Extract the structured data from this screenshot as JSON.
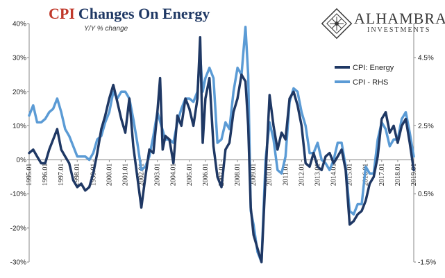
{
  "chart_data": {
    "type": "line",
    "title_part1": "CPI",
    "title_part2": "Changes On Energy",
    "subtitle": "Y/Y % change",
    "x_labels": [
      "1995.01",
      "1996.01",
      "1997.01",
      "1998.01",
      "1999.01",
      "2000.01",
      "2001.01",
      "2002.01",
      "2003.01",
      "2004.01",
      "2005.01",
      "2006.01",
      "2007.01",
      "2008.01",
      "2009.01",
      "2010.01",
      "2011.01",
      "2012.01",
      "2013.01",
      "2014.01",
      "2015.01",
      "2016.01",
      "2017.01",
      "2018.01",
      "2019.01"
    ],
    "xlim": [
      1995.0,
      2019.0
    ],
    "y_left": {
      "ticks": [
        "40%",
        "30%",
        "20%",
        "10%",
        "0%",
        "-10%",
        "-20%",
        "-30%"
      ],
      "values": [
        40,
        30,
        20,
        10,
        0,
        -10,
        -20,
        -30
      ],
      "lim": [
        -30,
        40
      ]
    },
    "y_right": {
      "ticks": [
        "4.5%",
        "2.5%",
        "0.5%",
        "-1.5%"
      ],
      "values": [
        4.5,
        2.5,
        0.5,
        -1.5
      ],
      "lim": [
        -1.5,
        5.5
      ]
    },
    "series": [
      {
        "name": "CPI: Energy",
        "axis": "left",
        "color": "#1f3864",
        "x": [
          1995.0,
          1995.25,
          1995.5,
          1995.75,
          1996.0,
          1996.25,
          1996.5,
          1996.75,
          1997.0,
          1997.25,
          1997.5,
          1997.75,
          1998.0,
          1998.25,
          1998.5,
          1998.75,
          1999.0,
          1999.25,
          1999.5,
          1999.75,
          2000.0,
          2000.25,
          2000.5,
          2000.75,
          2001.0,
          2001.25,
          2001.5,
          2001.75,
          2002.0,
          2002.25,
          2002.5,
          2002.75,
          2003.0,
          2003.17,
          2003.33,
          2003.5,
          2003.75,
          2004.0,
          2004.25,
          2004.5,
          2004.75,
          2005.0,
          2005.25,
          2005.5,
          2005.67,
          2005.83,
          2006.0,
          2006.25,
          2006.5,
          2006.75,
          2007.0,
          2007.25,
          2007.5,
          2007.75,
          2008.0,
          2008.25,
          2008.5,
          2008.67,
          2008.83,
          2009.0,
          2009.25,
          2009.5,
          2009.75,
          2010.0,
          2010.25,
          2010.5,
          2010.75,
          2011.0,
          2011.25,
          2011.5,
          2011.75,
          2012.0,
          2012.25,
          2012.5,
          2012.75,
          2013.0,
          2013.25,
          2013.5,
          2013.75,
          2014.0,
          2014.25,
          2014.5,
          2014.75,
          2015.0,
          2015.25,
          2015.5,
          2015.75,
          2016.0,
          2016.25,
          2016.5,
          2016.75,
          2017.0,
          2017.25,
          2017.5,
          2017.75,
          2018.0,
          2018.25,
          2018.5,
          2018.75,
          2019.0
        ],
        "y": [
          2,
          3,
          1,
          -1,
          -1,
          3,
          6,
          9,
          3,
          1,
          -1,
          -6,
          -8,
          -7,
          -9,
          -8,
          -4,
          2,
          9,
          13,
          18,
          22,
          17,
          12,
          8,
          18,
          4,
          -5,
          -14,
          -5,
          3,
          2,
          14,
          24,
          3,
          7,
          6,
          -1,
          13,
          10,
          18,
          15,
          10,
          18,
          36,
          5,
          18,
          24,
          4,
          -5,
          -8,
          3,
          5,
          14,
          18,
          25,
          23,
          10,
          -14,
          -22,
          -26,
          -30,
          -5,
          19,
          10,
          3,
          8,
          6,
          18,
          20,
          16,
          10,
          -1,
          -2,
          2,
          -2,
          -3,
          1,
          2,
          -1,
          1,
          3,
          -3,
          -19,
          -18,
          -16,
          -15,
          -12,
          -7,
          -5,
          1,
          12,
          14,
          8,
          10,
          5,
          10,
          12,
          5,
          -3
        ]
      },
      {
        "name": "CPI - RHS",
        "axis": "right",
        "color": "#5b9bd5",
        "x": [
          1995.0,
          1995.25,
          1995.5,
          1995.75,
          1996.0,
          1996.25,
          1996.5,
          1996.75,
          1997.0,
          1997.25,
          1997.5,
          1997.75,
          1998.0,
          1998.25,
          1998.5,
          1998.75,
          1999.0,
          1999.25,
          1999.5,
          1999.75,
          2000.0,
          2000.25,
          2000.5,
          2000.75,
          2001.0,
          2001.25,
          2001.5,
          2001.75,
          2002.0,
          2002.25,
          2002.5,
          2002.75,
          2003.0,
          2003.25,
          2003.5,
          2003.75,
          2004.0,
          2004.25,
          2004.5,
          2004.75,
          2005.0,
          2005.25,
          2005.5,
          2005.67,
          2005.83,
          2006.0,
          2006.25,
          2006.5,
          2006.75,
          2007.0,
          2007.25,
          2007.5,
          2007.75,
          2008.0,
          2008.25,
          2008.5,
          2008.67,
          2008.83,
          2009.0,
          2009.25,
          2009.5,
          2009.75,
          2010.0,
          2010.25,
          2010.5,
          2010.75,
          2011.0,
          2011.25,
          2011.5,
          2011.75,
          2012.0,
          2012.25,
          2012.5,
          2012.75,
          2013.0,
          2013.25,
          2013.5,
          2013.75,
          2014.0,
          2014.25,
          2014.5,
          2014.75,
          2015.0,
          2015.25,
          2015.5,
          2015.75,
          2016.0,
          2016.25,
          2016.5,
          2016.75,
          2017.0,
          2017.25,
          2017.5,
          2017.75,
          2018.0,
          2018.25,
          2018.5,
          2018.75,
          2019.0
        ],
        "y": [
          2.8,
          3.1,
          2.6,
          2.6,
          2.7,
          2.9,
          3.0,
          3.3,
          2.9,
          2.4,
          2.2,
          1.9,
          1.6,
          1.6,
          1.6,
          1.5,
          1.7,
          2.1,
          2.2,
          2.6,
          2.9,
          3.5,
          3.3,
          3.5,
          3.5,
          3.3,
          2.7,
          2.0,
          1.2,
          1.3,
          1.6,
          2.2,
          2.9,
          2.5,
          2.1,
          2.1,
          2.0,
          2.6,
          3.0,
          3.3,
          3.3,
          3.2,
          3.5,
          4.6,
          3.5,
          3.9,
          4.2,
          3.9,
          2.0,
          2.1,
          2.6,
          2.4,
          3.5,
          4.2,
          4.0,
          5.4,
          4.0,
          0.0,
          -0.4,
          -1.2,
          -1.5,
          1.5,
          2.6,
          2.1,
          1.2,
          1.1,
          1.6,
          3.2,
          3.6,
          3.5,
          2.9,
          2.5,
          1.7,
          1.7,
          2.0,
          1.5,
          1.4,
          1.2,
          1.5,
          2.0,
          2.0,
          1.3,
          0.0,
          -0.1,
          0.2,
          0.2,
          1.3,
          1.1,
          1.1,
          2.1,
          2.6,
          2.4,
          1.9,
          2.1,
          2.1,
          2.7,
          2.9,
          2.3,
          1.6
        ]
      }
    ],
    "legend": {
      "placement": "right",
      "items": [
        "CPI: Energy",
        "CPI - RHS"
      ]
    },
    "grid": false
  },
  "logo": {
    "name": "ALHAMBRA",
    "tagline": "INVESTMENTS"
  }
}
